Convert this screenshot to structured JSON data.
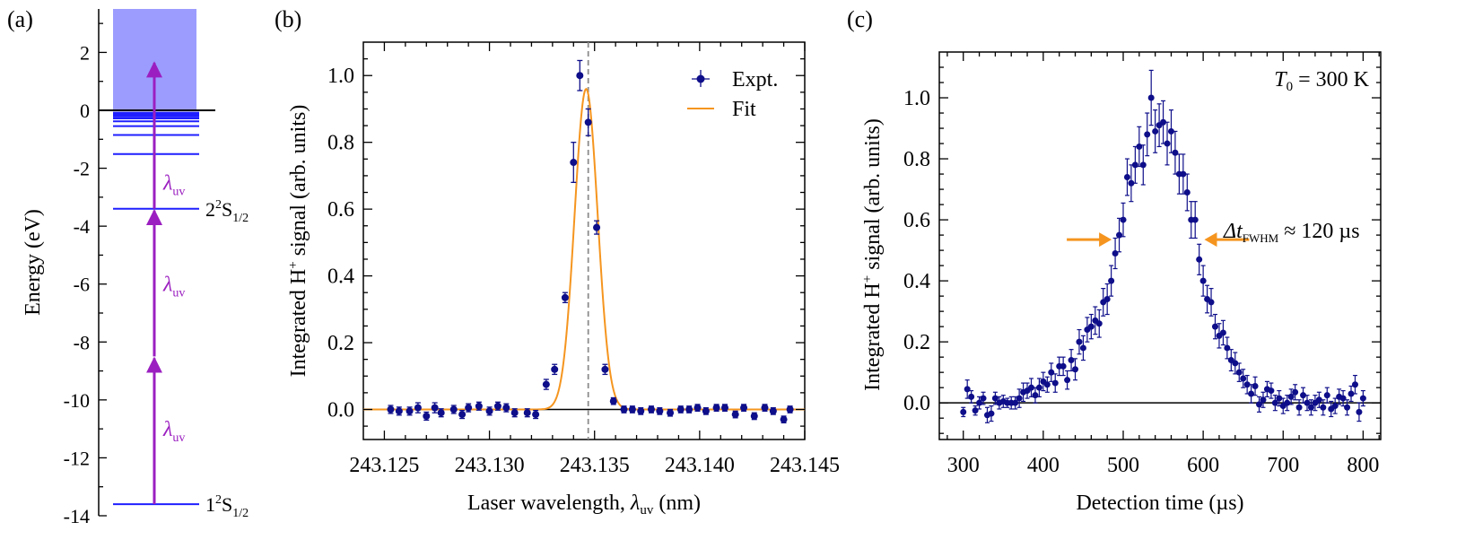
{
  "colors": {
    "energy_level": "#1f1fff",
    "continuum": "#9c9cff",
    "transition": "#9b1fc0",
    "data_points": "#0e0e8a",
    "fit": "#f5951f",
    "marker_line": "#8c8c8c",
    "fwhm_arrow": "#f5951f",
    "zero_line": "#000000"
  },
  "chart_data": [
    {
      "panel": "(a)",
      "type": "diagram",
      "ylabel": "Energy (eV)",
      "ylim": [
        -14,
        3.5
      ],
      "yticks": [
        -14,
        -12,
        -10,
        -8,
        -6,
        -4,
        -2,
        0,
        2
      ],
      "ytick_labels": [
        "-14",
        "-12",
        "-10",
        "-8",
        "-6",
        "-4",
        "-2",
        "0",
        "2"
      ],
      "continuum": {
        "from": 0,
        "to": 3.5
      },
      "levels": [
        -13.6,
        -3.4,
        -1.51,
        -0.85,
        -0.544,
        -0.378,
        -0.278,
        -0.213,
        -0.168,
        -0.136,
        -0.112,
        -0.094,
        -0.08
      ],
      "level_labels": [
        {
          "energy": -13.6,
          "main": "1",
          "sup": "2",
          "mid": "S",
          "sub": "1/2"
        },
        {
          "energy": -3.4,
          "main": "2",
          "sup": "2",
          "mid": "S",
          "sub": "1/2"
        }
      ],
      "transitions": [
        {
          "from": -13.6,
          "to": -8.5
        },
        {
          "from": -8.5,
          "to": -3.4
        },
        {
          "from": -3.4,
          "to": 1.7
        }
      ],
      "photon_label": {
        "symbol": "λ",
        "sub": "uv"
      },
      "photon_label_energies": [
        -11.0,
        -6.0,
        -2.5
      ]
    },
    {
      "panel": "(b)",
      "type": "scatter",
      "xlabel": {
        "text": "Laser wavelength, ",
        "symbol": "λ",
        "sub": "uv",
        "unit": " (nm)"
      },
      "ylabel": {
        "pre": "Integrated H",
        "sup": "+",
        "post": " signal (arb. units)"
      },
      "xlim": [
        243.124,
        243.145
      ],
      "ylim": [
        -0.09,
        1.1
      ],
      "xticks": [
        243.125,
        243.13,
        243.135,
        243.14,
        243.145
      ],
      "xtick_labels": [
        "243.125",
        "243.130",
        "243.135",
        "243.140",
        "243.145"
      ],
      "yticks": [
        0.0,
        0.2,
        0.4,
        0.6,
        0.8,
        1.0
      ],
      "ytick_labels": [
        "0.0",
        "0.2",
        "0.4",
        "0.6",
        "0.8",
        "1.0"
      ],
      "legend": {
        "placement": "top-right",
        "entries": [
          "Expt.",
          "Fit"
        ]
      },
      "center_marker": 243.1347,
      "fit": {
        "type": "gaussian",
        "amplitude": 0.96,
        "center": 243.1346,
        "sigma": 0.00055,
        "offset": 0.0
      },
      "series": [
        {
          "name": "Expt.",
          "x": [
            243.1253,
            243.1257,
            243.1262,
            243.1266,
            243.127,
            243.1274,
            243.1277,
            243.1283,
            243.1287,
            243.129,
            243.1295,
            243.13,
            243.1304,
            243.1308,
            243.1312,
            243.1318,
            243.1322,
            243.1327,
            243.1331,
            243.1336,
            243.134,
            243.1343,
            243.1347,
            243.1351,
            243.1355,
            243.1359,
            243.1364,
            243.1368,
            243.1372,
            243.1377,
            243.1381,
            243.1386,
            243.1391,
            243.1395,
            243.1399,
            243.1403,
            243.1408,
            243.1412,
            243.1417,
            243.1421,
            243.1426,
            243.1431,
            243.1435,
            243.144,
            243.1443
          ],
          "y": [
            0.0,
            -0.005,
            -0.005,
            0.005,
            -0.02,
            0.005,
            -0.01,
            0.0,
            -0.015,
            0.005,
            0.01,
            -0.005,
            0.01,
            0.005,
            -0.01,
            -0.01,
            -0.015,
            0.075,
            0.12,
            0.335,
            0.74,
            1.0,
            0.86,
            0.545,
            0.12,
            0.025,
            0.0,
            0.0,
            -0.005,
            0.0,
            -0.005,
            -0.01,
            0.0,
            0.0,
            0.005,
            -0.005,
            0.005,
            0.005,
            -0.015,
            0.005,
            -0.02,
            0.005,
            -0.005,
            -0.03,
            0.0
          ],
          "err": [
            0.012,
            0.012,
            0.012,
            0.015,
            0.012,
            0.015,
            0.012,
            0.012,
            0.012,
            0.012,
            0.012,
            0.012,
            0.012,
            0.012,
            0.012,
            0.012,
            0.012,
            0.015,
            0.015,
            0.015,
            0.06,
            0.045,
            0.04,
            0.02,
            0.015,
            0.01,
            0.01,
            0.01,
            0.01,
            0.01,
            0.01,
            0.01,
            0.01,
            0.01,
            0.01,
            0.01,
            0.01,
            0.01,
            0.01,
            0.01,
            0.01,
            0.01,
            0.01,
            0.01,
            0.01
          ]
        }
      ]
    },
    {
      "panel": "(c)",
      "type": "scatter",
      "xlabel": {
        "text": "Detection time (µs)"
      },
      "ylabel": {
        "pre": "Integrated H",
        "sup": "+",
        "post": " signal (arb. units)"
      },
      "xlim": [
        270,
        822
      ],
      "ylim": [
        -0.12,
        1.15
      ],
      "xticks": [
        300,
        400,
        500,
        600,
        700,
        800
      ],
      "xtick_labels": [
        "300",
        "400",
        "500",
        "600",
        "700",
        "800"
      ],
      "yticks": [
        0.0,
        0.2,
        0.4,
        0.6,
        0.8,
        1.0
      ],
      "ytick_labels": [
        "0.0",
        "0.2",
        "0.4",
        "0.6",
        "0.8",
        "1.0"
      ],
      "annotation_temperature": {
        "symbol": "T",
        "sub": "0",
        "rest": " = 300 K"
      },
      "annotation_fwhm": {
        "symbol": "Δt",
        "sub": "FWHM",
        "rest": " ≈ 120 µs"
      },
      "fwhm_arrows": {
        "left_x": 490,
        "right_x": 597,
        "y": 0.5
      },
      "series": [
        {
          "name": "",
          "x": [
            300,
            305,
            310,
            315,
            320,
            325,
            330,
            335,
            340,
            345,
            350,
            355,
            360,
            365,
            370,
            375,
            380,
            385,
            390,
            395,
            400,
            405,
            410,
            415,
            420,
            425,
            430,
            435,
            440,
            445,
            450,
            455,
            460,
            465,
            470,
            475,
            480,
            485,
            490,
            495,
            500,
            505,
            510,
            515,
            520,
            525,
            530,
            535,
            540,
            545,
            550,
            555,
            560,
            565,
            570,
            575,
            580,
            585,
            590,
            595,
            600,
            605,
            610,
            615,
            620,
            625,
            630,
            635,
            640,
            645,
            650,
            655,
            660,
            665,
            670,
            675,
            680,
            685,
            690,
            695,
            700,
            705,
            710,
            715,
            720,
            725,
            730,
            735,
            740,
            745,
            750,
            755,
            760,
            765,
            770,
            775,
            780,
            785,
            790,
            795,
            800
          ],
          "y": [
            -0.03,
            0.045,
            0.02,
            -0.025,
            0.0,
            0.015,
            -0.04,
            -0.035,
            0.015,
            0.0,
            0.005,
            0.0,
            0.0,
            0.0,
            0.015,
            0.035,
            0.04,
            0.05,
            0.025,
            0.05,
            0.07,
            0.06,
            0.1,
            0.065,
            0.12,
            0.12,
            0.075,
            0.14,
            0.11,
            0.2,
            0.18,
            0.24,
            0.25,
            0.27,
            0.26,
            0.33,
            0.34,
            0.4,
            0.49,
            0.55,
            0.6,
            0.74,
            0.72,
            0.78,
            0.84,
            0.78,
            0.88,
            1.0,
            0.89,
            0.91,
            0.92,
            0.85,
            0.89,
            0.82,
            0.75,
            0.75,
            0.69,
            0.6,
            0.6,
            0.47,
            0.4,
            0.34,
            0.33,
            0.25,
            0.22,
            0.23,
            0.18,
            0.14,
            0.13,
            0.1,
            0.08,
            0.06,
            0.03,
            0.055,
            -0.005,
            0.01,
            0.045,
            0.04,
            0.0,
            0.015,
            -0.01,
            0.0,
            0.02,
            0.035,
            -0.015,
            0.025,
            0.0,
            -0.015,
            0.0,
            0.01,
            -0.015,
            0.025,
            -0.02,
            -0.01,
            0.02,
            0.015,
            -0.015,
            0.03,
            0.06,
            -0.03,
            0.015
          ],
          "err": [
            0.015,
            0.03,
            0.02,
            0.015,
            0.02,
            0.02,
            0.025,
            0.025,
            0.02,
            0.02,
            0.02,
            0.015,
            0.02,
            0.02,
            0.03,
            0.03,
            0.025,
            0.03,
            0.025,
            0.03,
            0.03,
            0.025,
            0.03,
            0.03,
            0.03,
            0.03,
            0.03,
            0.035,
            0.035,
            0.04,
            0.04,
            0.04,
            0.04,
            0.045,
            0.045,
            0.045,
            0.05,
            0.05,
            0.05,
            0.055,
            0.055,
            0.06,
            0.06,
            0.06,
            0.065,
            0.065,
            0.07,
            0.09,
            0.07,
            0.07,
            0.07,
            0.07,
            0.07,
            0.07,
            0.065,
            0.065,
            0.06,
            0.06,
            0.06,
            0.05,
            0.05,
            0.045,
            0.045,
            0.04,
            0.04,
            0.04,
            0.035,
            0.035,
            0.035,
            0.03,
            0.03,
            0.03,
            0.03,
            0.03,
            0.025,
            0.025,
            0.025,
            0.025,
            0.025,
            0.025,
            0.025,
            0.025,
            0.025,
            0.025,
            0.025,
            0.025,
            0.025,
            0.025,
            0.025,
            0.025,
            0.025,
            0.025,
            0.025,
            0.025,
            0.025,
            0.025,
            0.025,
            0.025,
            0.03,
            0.03,
            0.025
          ]
        }
      ]
    }
  ]
}
